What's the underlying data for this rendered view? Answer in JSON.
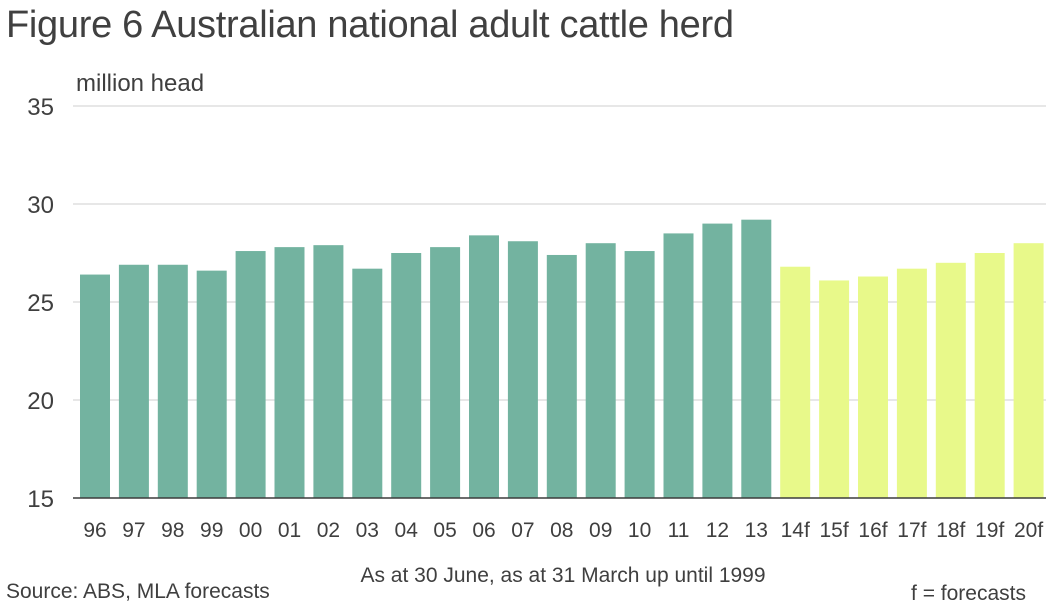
{
  "chart_data": {
    "type": "bar",
    "title": "Figure 6 Australian national adult cattle herd",
    "ylabel": "million head",
    "xlabel": "As at 30 June, as at 31 March up until 1999",
    "categories": [
      "96",
      "97",
      "98",
      "99",
      "00",
      "01",
      "02",
      "03",
      "04",
      "05",
      "06",
      "07",
      "08",
      "09",
      "10",
      "11",
      "12",
      "13",
      "14f",
      "15f",
      "16f",
      "17f",
      "18f",
      "19f",
      "20f"
    ],
    "values": [
      26.4,
      26.9,
      26.9,
      26.6,
      27.6,
      27.8,
      27.9,
      26.7,
      27.5,
      27.8,
      28.4,
      28.1,
      27.4,
      28.0,
      27.6,
      28.5,
      29.0,
      29.2,
      26.8,
      26.1,
      26.3,
      26.7,
      27.0,
      27.5,
      28.0
    ],
    "forecast": [
      false,
      false,
      false,
      false,
      false,
      false,
      false,
      false,
      false,
      false,
      false,
      false,
      false,
      false,
      false,
      false,
      false,
      false,
      true,
      true,
      true,
      true,
      true,
      true,
      true
    ],
    "ylim": [
      15,
      35
    ],
    "yticks": [
      15,
      20,
      25,
      30,
      35
    ],
    "grid": true,
    "colors": {
      "actual": "#73b3a0",
      "forecast": "#e8f98a",
      "grid": "#cfcfcf",
      "axis": "#3c3c3c"
    }
  },
  "footer": {
    "source": "Source: ABS, MLA forecasts",
    "forecast_note": "f = forecasts"
  }
}
